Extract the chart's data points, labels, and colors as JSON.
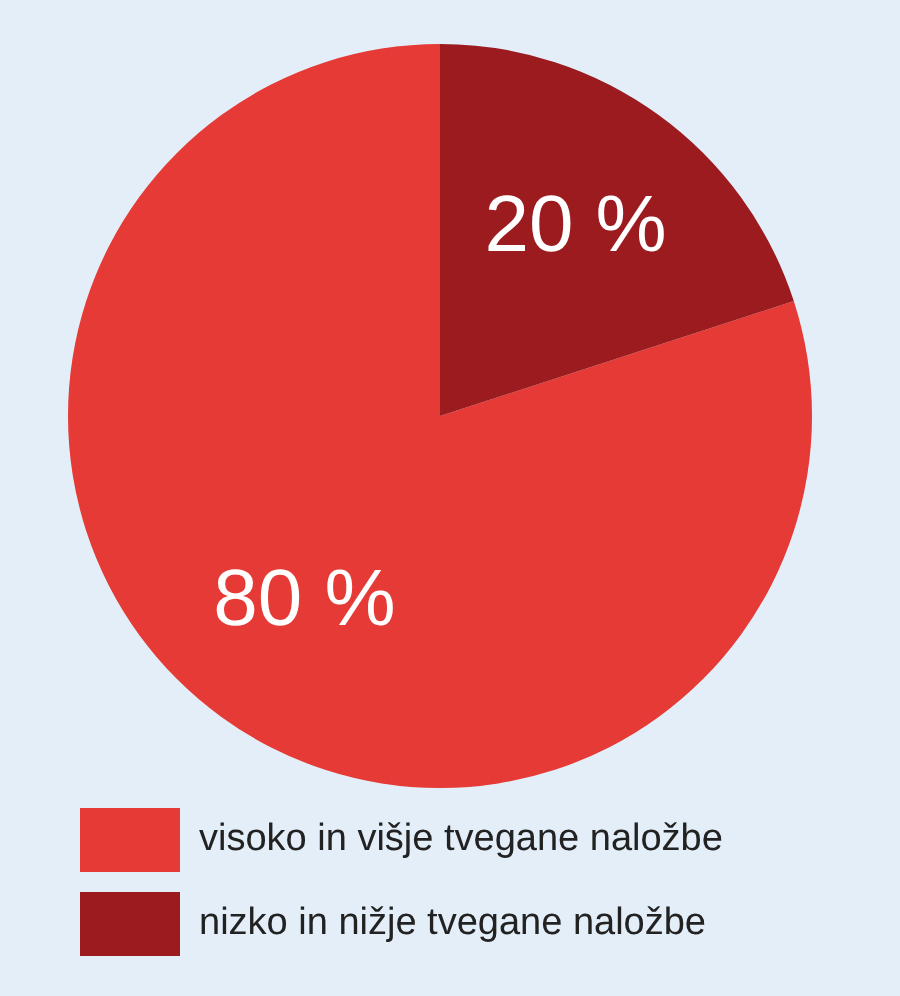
{
  "chart_data": {
    "type": "pie",
    "categories": [
      "visoko in višje tvegane naložbe",
      "nizko in nižje tvegane naložbe"
    ],
    "values": [
      80,
      20
    ],
    "colors": [
      "#e53a35",
      "#9b1b1f"
    ],
    "value_labels": [
      "80 %",
      "20 %"
    ],
    "legend": "bottom"
  }
}
